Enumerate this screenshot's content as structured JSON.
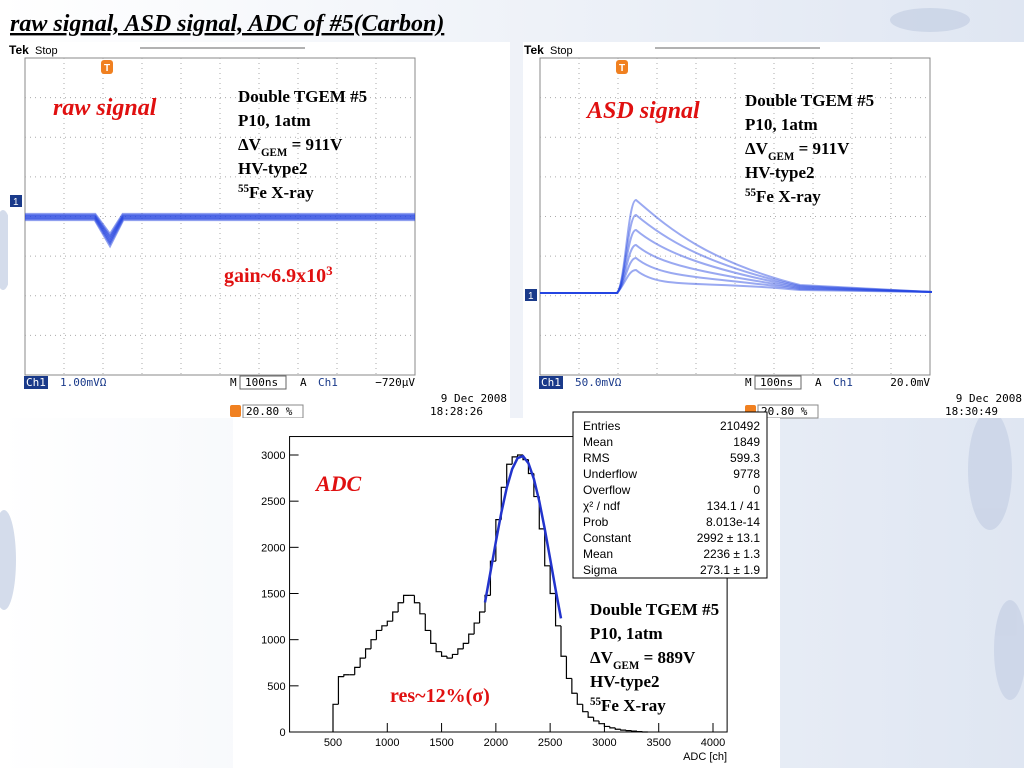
{
  "title": "raw signal, ASD signal, ADC of #5(Carbon)",
  "scope_1": {
    "brand": "Tek",
    "state": "Stop",
    "label": "raw signal",
    "notes": [
      "Double TGEM #5",
      "P10, 1atm",
      {
        "pre": "ΔV",
        "sub": "GEM",
        "post": " = 911V"
      },
      "HV-type2",
      {
        "sup": "55",
        "post": "Fe X-ray"
      }
    ],
    "gain": {
      "text": "gain~6.9x10",
      "sup": "3"
    },
    "channel": "Ch1",
    "scale": "1.00mVΩ",
    "time_mode": "M",
    "timebase": "100ns",
    "trigger_mode": "A",
    "trigger_channel": "Ch1",
    "trigger_level": "−720µV",
    "date": "9 Dec  2008",
    "time": "18:28:26",
    "percent": "20.80 %",
    "trigger_marker": "T",
    "channel_marker": "1"
  },
  "scope_2": {
    "brand": "Tek",
    "state": "Stop",
    "label": "ASD signal",
    "notes": [
      "Double TGEM #5",
      "P10, 1atm",
      {
        "pre": "ΔV",
        "sub": "GEM",
        "post": " = 911V"
      },
      "HV-type2",
      {
        "sup": "55",
        "post": "Fe X-ray"
      }
    ],
    "channel": "Ch1",
    "scale": "50.0mVΩ",
    "time_mode": "M",
    "timebase": "100ns",
    "trigger_mode": "A",
    "trigger_channel": "Ch1",
    "trigger_level": "20.0mV",
    "date": "9 Dec  2008",
    "time": "18:30:49",
    "percent": "20.80 %",
    "trigger_marker": "T",
    "channel_marker": "1"
  },
  "chart_data": {
    "type": "histogram",
    "x_label": "ADC [ch]",
    "color": "#000000",
    "bins": [
      500,
      550,
      600,
      650,
      700,
      750,
      800,
      850,
      900,
      950,
      1000,
      1050,
      1100,
      1150,
      1200,
      1250,
      1300,
      1350,
      1400,
      1450,
      1500,
      1550,
      1600,
      1650,
      1700,
      1750,
      1800,
      1850,
      1900,
      1950,
      2000,
      2050,
      2100,
      2150,
      2200,
      2250,
      2300,
      2350,
      2400,
      2450,
      2500,
      2550,
      2600,
      2650,
      2700,
      2750,
      2800,
      2850,
      2900,
      2950,
      3000,
      3050,
      3100,
      3150,
      3200,
      3250,
      3300,
      3350,
      3400
    ],
    "values": [
      300,
      600,
      620,
      620,
      700,
      800,
      900,
      1000,
      1100,
      1150,
      1200,
      1300,
      1400,
      1480,
      1480,
      1400,
      1280,
      1100,
      960,
      870,
      820,
      800,
      840,
      900,
      960,
      1060,
      1180,
      1300,
      1480,
      1850,
      2300,
      2650,
      2900,
      2980,
      3000,
      2950,
      2800,
      2550,
      2200,
      1800,
      1500,
      1150,
      820,
      580,
      420,
      300,
      220,
      160,
      120,
      90,
      60,
      45,
      30,
      20,
      15,
      10,
      5,
      0
    ],
    "fit": {
      "color": "#2233cc",
      "x": [
        1900,
        1950,
        2000,
        2050,
        2100,
        2150,
        2200,
        2250,
        2300,
        2350,
        2400,
        2450,
        2500,
        2550,
        2600
      ],
      "values": [
        1403,
        1730,
        2060,
        2373,
        2643,
        2847,
        2966,
        2988,
        2911,
        2742,
        2499,
        2201,
        1876,
        1545,
        1231
      ]
    },
    "xlim": [
      100,
      4130
    ],
    "ylim": [
      0,
      3200
    ],
    "xticks": [
      500,
      1000,
      1500,
      2000,
      2500,
      3000,
      3500,
      4000
    ],
    "yticks": [
      0,
      500,
      1000,
      1500,
      2000,
      2500,
      3000
    ],
    "stats": [
      [
        "Entries",
        "210492"
      ],
      [
        "Mean",
        "1849"
      ],
      [
        "RMS",
        "599.3"
      ],
      [
        "Underflow",
        "9778"
      ],
      [
        "Overflow",
        "0"
      ],
      [
        "χ² / ndf",
        "134.1 / 41"
      ],
      [
        "Prob",
        "8.013e-14"
      ],
      [
        "Constant",
        "2992 ± 13.1"
      ],
      [
        "Mean",
        "2236 ± 1.3"
      ],
      [
        "Sigma",
        "273.1 ± 1.9"
      ]
    ],
    "annotations": {
      "label": "ADC",
      "resolution": "res~12%(σ)",
      "notes": [
        "Double TGEM #5",
        "P10, 1atm",
        {
          "pre": "ΔV",
          "sub": "GEM",
          "post": " = 889V"
        },
        "HV-type2",
        {
          "sup": "55",
          "post": "Fe X-ray"
        }
      ]
    }
  }
}
